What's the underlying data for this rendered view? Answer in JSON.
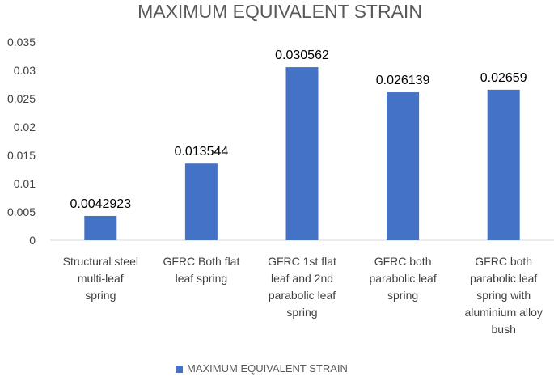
{
  "chart_data": {
    "type": "bar",
    "title": "MAXIMUM EQUIVALENT STRAIN",
    "categories": [
      [
        "Structural steel",
        "multi-leaf",
        "spring"
      ],
      [
        "GFRC Both flat",
        "leaf spring"
      ],
      [
        "GFRC 1st flat",
        "leaf and 2nd",
        "parabolic leaf",
        "spring"
      ],
      [
        "GFRC both",
        "parabolic leaf",
        "spring"
      ],
      [
        "GFRC both",
        "parabolic leaf",
        "spring with",
        "aluminium alloy",
        "bush"
      ]
    ],
    "series": [
      {
        "name": "MAXIMUM EQUIVALENT STRAIN",
        "values": [
          0.0042923,
          0.013544,
          0.030562,
          0.026139,
          0.02659
        ],
        "data_labels": [
          "0.0042923",
          "0.013544",
          "0.030562",
          "0.026139",
          "0.02659"
        ]
      }
    ],
    "ylim": [
      0,
      0.035
    ],
    "yticks": [
      "0",
      "0.005",
      "0.01",
      "0.015",
      "0.02",
      "0.025",
      "0.03",
      "0.035"
    ],
    "grid": false,
    "legend_position": "bottom",
    "colors": {
      "bar": "#4472C4",
      "text": "#404040",
      "axis": "#d9d9d9",
      "title": "#595959"
    }
  }
}
